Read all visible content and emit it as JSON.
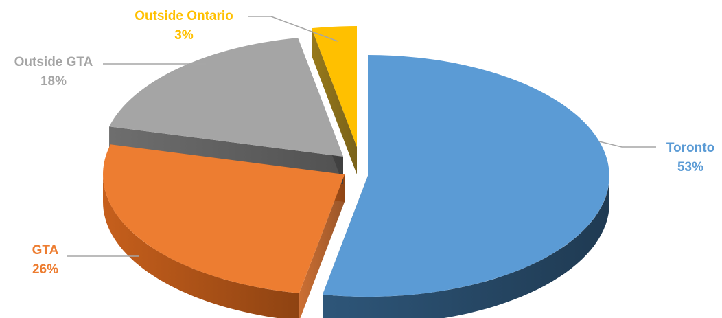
{
  "chart_data": {
    "type": "pie",
    "style": "3d-exploded",
    "title": "",
    "legend": "none",
    "data_labels": "category name and percentage",
    "slices": [
      {
        "name": "Toronto",
        "percent_label": "53%",
        "value": 53,
        "color": "#5B9BD5"
      },
      {
        "name": "GTA",
        "percent_label": "26%",
        "value": 26,
        "color": "#ED7D31"
      },
      {
        "name": "Outside GTA",
        "percent_label": "18%",
        "value": 18,
        "color": "#A5A5A5"
      },
      {
        "name": "Outside Ontario",
        "percent_label": "3%",
        "value": 3,
        "color": "#FFC000"
      }
    ]
  }
}
